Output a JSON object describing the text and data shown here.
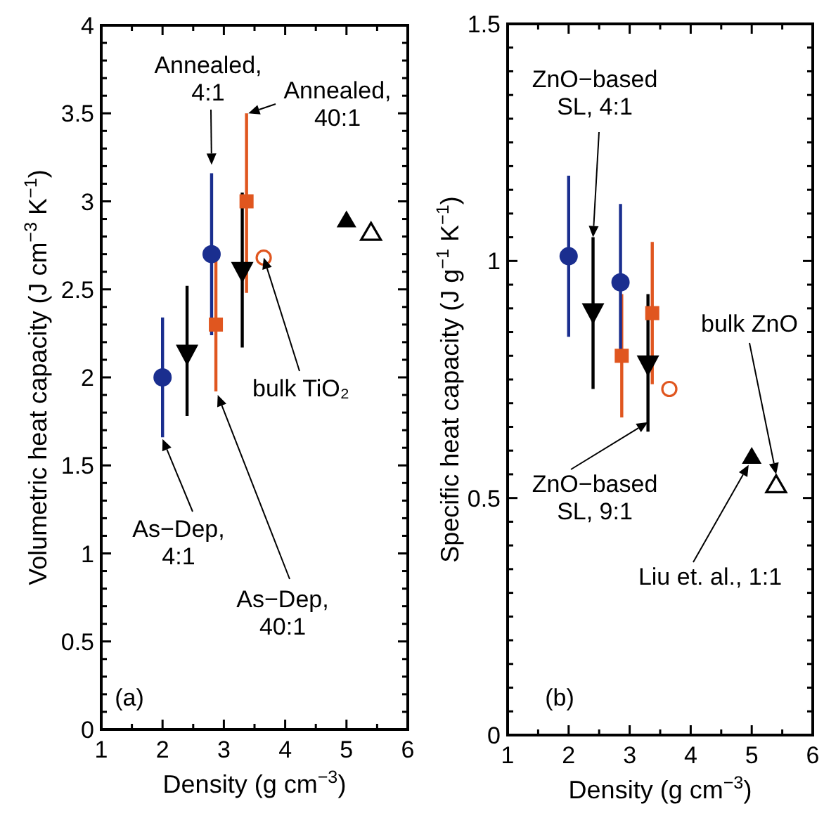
{
  "chart_data": [
    {
      "type": "scatter",
      "xlabel": "Density (g cm$^{−3}$)",
      "ylabel": "Volumetric heat capacity (J cm$^{−3}$ K$^{−1}$)",
      "xlim": [
        1,
        6
      ],
      "ylim": [
        0,
        4
      ],
      "xticks": [
        1,
        {
          "value": 1.5,
          "label": null
        },
        2,
        {
          "value": 2.5,
          "label": null
        },
        3,
        {
          "value": 3.5,
          "label": null
        },
        4,
        {
          "value": 4.5,
          "label": null
        },
        5,
        {
          "value": 5.5,
          "label": null
        },
        6
      ],
      "yticks": [
        0,
        {
          "value": 0.1,
          "label": null
        },
        {
          "value": 0.2,
          "label": null
        },
        {
          "value": 0.3,
          "label": null
        },
        {
          "value": 0.4,
          "label": null
        },
        0.5,
        {
          "value": 0.6,
          "label": null
        },
        {
          "value": 0.7,
          "label": null
        },
        {
          "value": 0.8,
          "label": null
        },
        {
          "value": 0.9,
          "label": null
        },
        1,
        {
          "value": 1.1,
          "label": null
        },
        {
          "value": 1.2,
          "label": null
        },
        {
          "value": 1.3,
          "label": null
        },
        {
          "value": 1.4,
          "label": null
        },
        1.5,
        {
          "value": 1.6,
          "label": null
        },
        {
          "value": 1.7,
          "label": null
        },
        {
          "value": 1.8,
          "label": null
        },
        {
          "value": 1.9,
          "label": null
        },
        2,
        {
          "value": 2.1,
          "label": null
        },
        {
          "value": 2.2,
          "label": null
        },
        {
          "value": 2.3,
          "label": null
        },
        {
          "value": 2.4,
          "label": null
        },
        2.5,
        {
          "value": 2.6,
          "label": null
        },
        {
          "value": 2.7,
          "label": null
        },
        {
          "value": 2.8,
          "label": null
        },
        {
          "value": 2.9,
          "label": null
        },
        3,
        {
          "value": 3.1,
          "label": null
        },
        {
          "value": 3.2,
          "label": null
        },
        {
          "value": 3.3,
          "label": null
        },
        {
          "value": 3.4,
          "label": null
        },
        3.5,
        {
          "value": 3.6,
          "label": null
        },
        {
          "value": 3.7,
          "label": null
        },
        {
          "value": 3.8,
          "label": null
        },
        {
          "value": 3.9,
          "label": null
        },
        4
      ],
      "series": [
        {
          "color": "#e0561f",
          "marker": "square",
          "x": [
            2.87,
            3.37
          ],
          "values": [
            2.3,
            3.0
          ],
          "errors": [
            [
              1.92,
              2.68
            ],
            [
              2.48,
              3.5
            ]
          ]
        },
        {
          "color": "#1a2e8f",
          "marker": "circle",
          "x": [
            2.0,
            2.8
          ],
          "values": [
            2.0,
            2.7
          ],
          "errors": [
            [
              1.66,
              2.34
            ],
            [
              2.24,
              3.16
            ]
          ]
        },
        {
          "color": "#000000",
          "marker": "triangle-down",
          "x": [
            2.4,
            3.3
          ],
          "values": [
            2.13,
            2.6
          ],
          "errors": [
            [
              1.78,
              2.52
            ],
            [
              2.17,
              3.05
            ]
          ]
        },
        {
          "color": "#e0561f",
          "marker": "circle-open",
          "x": [
            3.65
          ],
          "values": [
            2.68
          ]
        },
        {
          "color": "#000000",
          "marker": "triangle",
          "x": [
            5.0
          ],
          "values": [
            2.9
          ]
        },
        {
          "color": "#000000",
          "marker": "triangle-open",
          "x": [
            5.4
          ],
          "values": [
            2.83
          ]
        }
      ],
      "annotations": [
        {
          "text": "Annealed,\n4:1",
          "x": 2.8,
          "y": 3.16
        },
        {
          "text": "Annealed,\n40:1",
          "x": 3.4,
          "y": 3.5
        },
        {
          "text": "bulk TiO₂",
          "x": 3.65,
          "y": 2.68
        },
        {
          "text": "As−Dep,\n4:1",
          "x": 2.0,
          "y": 1.65
        },
        {
          "text": "As−Dep,\n40:1",
          "x": 2.9,
          "y": 1.9
        },
        "(a)"
      ]
    },
    {
      "type": "scatter",
      "xlabel": "Density (g cm$^{−3}$)",
      "ylabel": "Specific heat capacity (J g$^{−1}$ K$^{−1}$)",
      "xlim": [
        1,
        6
      ],
      "ylim": [
        0,
        1.5
      ],
      "xticks": [
        1,
        {
          "value": 1.5,
          "label": null
        },
        2,
        {
          "value": 2.5,
          "label": null
        },
        3,
        {
          "value": 3.5,
          "label": null
        },
        4,
        {
          "value": 4.5,
          "label": null
        },
        5,
        {
          "value": 5.5,
          "label": null
        },
        6
      ],
      "yticks": [
        0,
        {
          "value": 0.05,
          "label": null
        },
        {
          "value": 0.1,
          "label": null
        },
        {
          "value": 0.15,
          "label": null
        },
        {
          "value": 0.2,
          "label": null
        },
        {
          "value": 0.25,
          "label": null
        },
        {
          "value": 0.3,
          "label": null
        },
        {
          "value": 0.35,
          "label": null
        },
        {
          "value": 0.4,
          "label": null
        },
        {
          "value": 0.45,
          "label": null
        },
        0.5,
        {
          "value": 0.55,
          "label": null
        },
        {
          "value": 0.6,
          "label": null
        },
        {
          "value": 0.65,
          "label": null
        },
        {
          "value": 0.7,
          "label": null
        },
        {
          "value": 0.75,
          "label": null
        },
        {
          "value": 0.8,
          "label": null
        },
        {
          "value": 0.85,
          "label": null
        },
        {
          "value": 0.9,
          "label": null
        },
        {
          "value": 0.95,
          "label": null
        },
        1,
        {
          "value": 1.05,
          "label": null
        },
        {
          "value": 1.1,
          "label": null
        },
        {
          "value": 1.15,
          "label": null
        },
        {
          "value": 1.2,
          "label": null
        },
        {
          "value": 1.25,
          "label": null
        },
        {
          "value": 1.3,
          "label": null
        },
        {
          "value": 1.35,
          "label": null
        },
        {
          "value": 1.4,
          "label": null
        },
        {
          "value": 1.45,
          "label": null
        },
        1.5
      ],
      "series": [
        {
          "color": "#e0561f",
          "marker": "square",
          "x": [
            2.87,
            3.37
          ],
          "values": [
            0.8,
            0.89
          ],
          "errors": [
            [
              0.67,
              0.93
            ],
            [
              0.74,
              1.04
            ]
          ]
        },
        {
          "color": "#1a2e8f",
          "marker": "circle",
          "x": [
            2.0,
            2.85
          ],
          "values": [
            1.01,
            0.955
          ],
          "errors": [
            [
              0.84,
              1.18
            ],
            [
              0.79,
              1.12
            ]
          ]
        },
        {
          "color": "#000000",
          "marker": "triangle-down",
          "x": [
            2.4,
            3.3
          ],
          "values": [
            0.89,
            0.78
          ],
          "errors": [
            [
              0.73,
              1.05
            ],
            [
              0.64,
              0.93
            ]
          ]
        },
        {
          "color": "#e0561f",
          "marker": "circle-open",
          "x": [
            3.65
          ],
          "values": [
            0.73
          ]
        },
        {
          "color": "#000000",
          "marker": "triangle",
          "x": [
            5.0
          ],
          "values": [
            0.59
          ]
        },
        {
          "color": "#000000",
          "marker": "triangle-open",
          "x": [
            5.4
          ],
          "values": [
            0.53
          ]
        }
      ],
      "annotations": [
        {
          "text": "ZnO−based\nSL, 4:1",
          "x": 2.4,
          "y": 1.05
        },
        {
          "text": "ZnO−based\nSL, 9:1",
          "x": 3.3,
          "y": 0.66
        },
        {
          "text": "bulk ZnO",
          "x": 5.4,
          "y": 0.55
        },
        {
          "text": "Liu et. al., 1:1",
          "x": 4.95,
          "y": 0.57
        },
        "(b)"
      ]
    }
  ]
}
